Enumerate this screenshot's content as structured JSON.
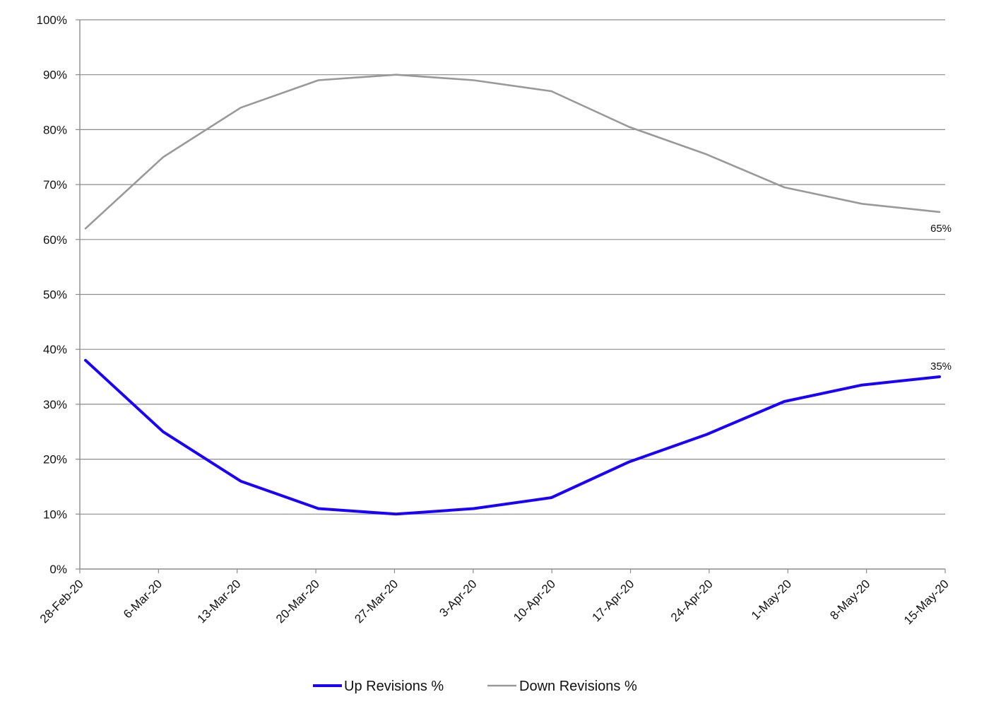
{
  "chart_data": {
    "type": "line",
    "title": "",
    "xlabel": "",
    "ylabel": "",
    "ylim": [
      0,
      100
    ],
    "yticks": [
      0,
      10,
      20,
      30,
      40,
      50,
      60,
      70,
      80,
      90,
      100
    ],
    "ytick_labels": [
      "0%",
      "10%",
      "20%",
      "30%",
      "40%",
      "50%",
      "60%",
      "70%",
      "80%",
      "90%",
      "100%"
    ],
    "categories": [
      "28-Feb-20",
      "6-Mar-20",
      "13-Mar-20",
      "20-Mar-20",
      "27-Mar-20",
      "3-Apr-20",
      "10-Apr-20",
      "17-Apr-20",
      "24-Apr-20",
      "1-May-20",
      "8-May-20",
      "15-May-20"
    ],
    "grid": "horizontal",
    "legend_position": "bottom-center",
    "series": [
      {
        "name": "Up Revisions %",
        "color": "#1a00ff",
        "values": [
          38,
          25,
          16,
          11,
          10,
          11,
          13,
          19.5,
          24.5,
          30.5,
          33.5,
          35
        ],
        "end_label": "35%"
      },
      {
        "name": "Down Revisions %",
        "color": "#999999",
        "values": [
          62,
          75,
          84,
          89,
          90,
          89,
          87,
          80.5,
          75.5,
          69.5,
          66.5,
          65
        ],
        "end_label": "65%"
      }
    ]
  }
}
